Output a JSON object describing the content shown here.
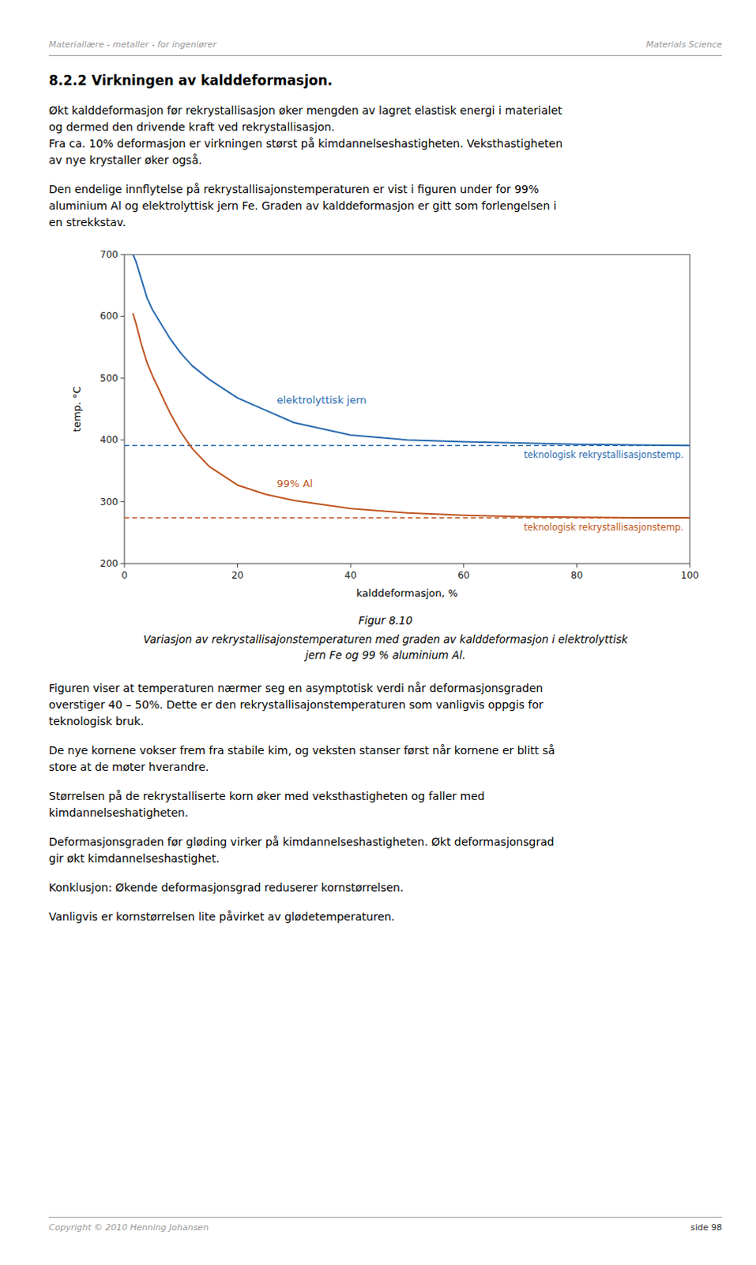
{
  "page": {
    "header_left": "Materiallære - metaller - for ingeniører",
    "header_right": "Materials Science",
    "section_title": "8.2.2    Virkningen av kalddeformasjon.",
    "paragraphs_before": [
      "Økt kalddeformasjon før rekrystallisasjon øker mengden av lagret elastisk energi i materialet\nog dermed den drivende kraft ved rekrystallisasjon.\nFra ca. 10% deformasjon er virkningen størst på kimdannelseshastigheten. Veksthastigheten\nav nye krystaller øker også.",
      "Den endelige innflytelse på rekrystallisajonstemperaturen er vist i figuren under for 99%\naluminium Al og elektrolyttisk jern Fe. Graden av kalddeformasjon er gitt som forlengelsen i\nen strekkstav."
    ],
    "paragraphs_after": [
      "Figuren viser at temperaturen nærmer seg en asymptotisk verdi når deformasjonsgraden\noverstiger 40 – 50%. Dette er den rekrystallisajonstemperaturen som vanligvis oppgis for\nteknologisk bruk.",
      "De nye kornene vokser frem fra stabile kim, og veksten stanser først når kornene er blitt så\nstore at de møter hverandre.",
      "Størrelsen på de rekrystalliserte korn øker med veksthastigheten og faller med\nkimdannelseshatigheten.",
      "Deformasjonsgraden før gløding virker på kimdannelseshastigheten. Økt deformasjonsgrad\ngir økt kimdannelseshastighet.",
      "Konklusjon: Økende deformasjonsgrad reduserer kornstørrelsen.",
      "Vanligvis er kornstørrelsen lite påvirket av glødetemperaturen."
    ],
    "footer_left": "Copyright © 2010  Henning Johansen",
    "footer_right": "side 98"
  },
  "chart_data": {
    "type": "line",
    "caption_title": "Figur 8.10",
    "caption": "Variasjon av rekrystallisajonstemperaturen med graden av kalddeformasjon i elektrolyttisk\njern Fe og 99 % aluminium Al.",
    "xlabel": "kalddeformasjon, %",
    "ylabel": "temp. °C",
    "x": [
      1.5,
      2,
      3,
      4,
      5,
      6,
      7,
      8,
      10,
      12,
      15,
      20,
      25,
      30,
      40,
      50,
      60,
      70,
      80,
      90,
      100
    ],
    "series": [
      {
        "name": "elektrolyttisk jern",
        "values": [
          700,
          690,
          660,
          630,
          610,
          595,
          580,
          565,
          540,
          520,
          498,
          468,
          448,
          428,
          408,
          400,
          397,
          395,
          393,
          392,
          391
        ]
      },
      {
        "name": "99% Al",
        "values": [
          605,
          590,
          555,
          525,
          503,
          484,
          464,
          445,
          412,
          386,
          357,
          327,
          312,
          302,
          289,
          282,
          278,
          276,
          275,
          274,
          274
        ]
      }
    ],
    "reference_lines": [
      {
        "value": 391,
        "label": "teknologisk rekrystallisasjonstemp."
      },
      {
        "value": 274,
        "label": "teknologisk rekrystallisasjonstemp."
      }
    ],
    "xlim": [
      0,
      100
    ],
    "ylim": [
      200,
      700
    ],
    "xticks": [
      0,
      20,
      40,
      60,
      80,
      100
    ],
    "yticks": [
      200,
      300,
      400,
      500,
      600,
      700
    ],
    "grid": false
  }
}
